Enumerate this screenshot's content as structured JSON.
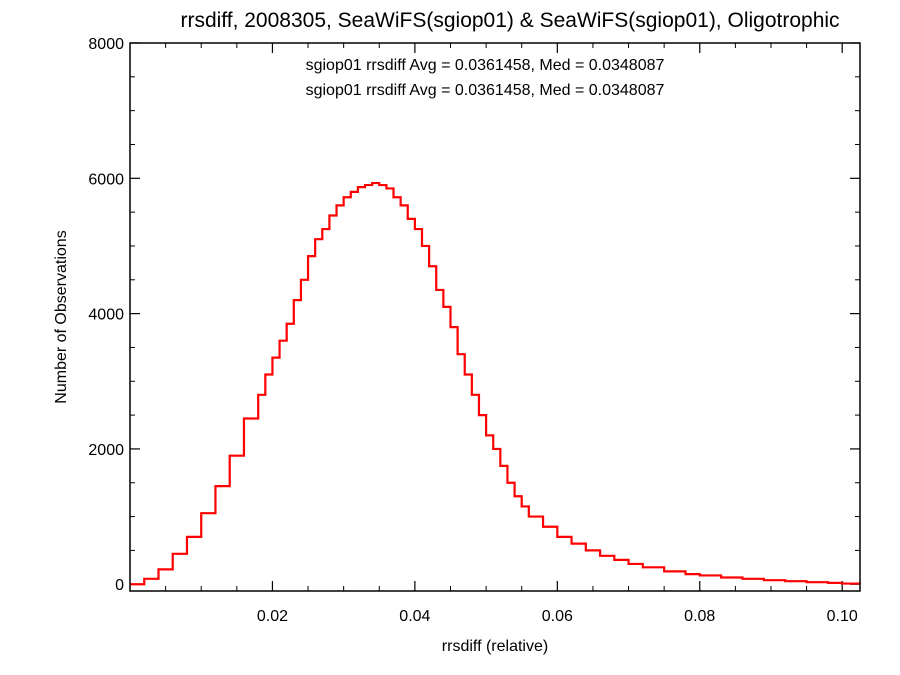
{
  "chart_data": {
    "type": "line",
    "style": "histogram-step",
    "title": "rrsdiff, 2008305, SeaWiFS(sgiop01) & SeaWiFS(sgiop01), Oligotrophic",
    "xlabel": "rrsdiff (relative)",
    "ylabel": "Number of Observations",
    "xlim": [
      0.0,
      0.1025
    ],
    "ylim": [
      -100,
      8000
    ],
    "grid": false,
    "xticks": [
      {
        "value": 0.02,
        "label": "0.02"
      },
      {
        "value": 0.04,
        "label": "0.04"
      },
      {
        "value": 0.06,
        "label": "0.06"
      },
      {
        "value": 0.08,
        "label": "0.08"
      },
      {
        "value": 0.1,
        "label": "0.10"
      }
    ],
    "yticks": [
      {
        "value": 0,
        "label": "0"
      },
      {
        "value": 2000,
        "label": "2000"
      },
      {
        "value": 4000,
        "label": "4000"
      },
      {
        "value": 6000,
        "label": "6000"
      },
      {
        "value": 8000,
        "label": "8000"
      }
    ],
    "annotations": [
      {
        "text": "sgiop01 rrsdiff Avg = 0.0361458, Med = 0.0348087",
        "color": "#000000"
      },
      {
        "text": "sgiop01 rrsdiff Avg = 0.0361458, Med = 0.0348087",
        "color": "#ff0000"
      }
    ],
    "series": [
      {
        "color": "#ff0000",
        "points": [
          [
            0.0,
            0
          ],
          [
            0.002,
            80
          ],
          [
            0.004,
            220
          ],
          [
            0.006,
            450
          ],
          [
            0.008,
            700
          ],
          [
            0.01,
            1050
          ],
          [
            0.012,
            1450
          ],
          [
            0.014,
            1900
          ],
          [
            0.016,
            2450
          ],
          [
            0.018,
            2800
          ],
          [
            0.019,
            3100
          ],
          [
            0.02,
            3350
          ],
          [
            0.021,
            3600
          ],
          [
            0.022,
            3850
          ],
          [
            0.023,
            4200
          ],
          [
            0.024,
            4500
          ],
          [
            0.025,
            4850
          ],
          [
            0.026,
            5100
          ],
          [
            0.027,
            5250
          ],
          [
            0.028,
            5450
          ],
          [
            0.029,
            5600
          ],
          [
            0.03,
            5720
          ],
          [
            0.031,
            5800
          ],
          [
            0.032,
            5870
          ],
          [
            0.033,
            5900
          ],
          [
            0.034,
            5930
          ],
          [
            0.035,
            5900
          ],
          [
            0.036,
            5850
          ],
          [
            0.037,
            5720
          ],
          [
            0.038,
            5600
          ],
          [
            0.039,
            5400
          ],
          [
            0.04,
            5250
          ],
          [
            0.041,
            5000
          ],
          [
            0.042,
            4700
          ],
          [
            0.043,
            4350
          ],
          [
            0.044,
            4100
          ],
          [
            0.045,
            3800
          ],
          [
            0.046,
            3400
          ],
          [
            0.047,
            3100
          ],
          [
            0.048,
            2800
          ],
          [
            0.049,
            2500
          ],
          [
            0.05,
            2200
          ],
          [
            0.051,
            2000
          ],
          [
            0.052,
            1750
          ],
          [
            0.053,
            1500
          ],
          [
            0.054,
            1300
          ],
          [
            0.055,
            1150
          ],
          [
            0.056,
            1000
          ],
          [
            0.058,
            850
          ],
          [
            0.06,
            700
          ],
          [
            0.062,
            600
          ],
          [
            0.064,
            500
          ],
          [
            0.066,
            420
          ],
          [
            0.068,
            360
          ],
          [
            0.07,
            300
          ],
          [
            0.072,
            250
          ],
          [
            0.075,
            190
          ],
          [
            0.078,
            150
          ],
          [
            0.08,
            130
          ],
          [
            0.083,
            100
          ],
          [
            0.086,
            80
          ],
          [
            0.089,
            60
          ],
          [
            0.092,
            45
          ],
          [
            0.095,
            30
          ],
          [
            0.098,
            20
          ],
          [
            0.1,
            10
          ],
          [
            0.1025,
            5
          ]
        ]
      }
    ]
  }
}
